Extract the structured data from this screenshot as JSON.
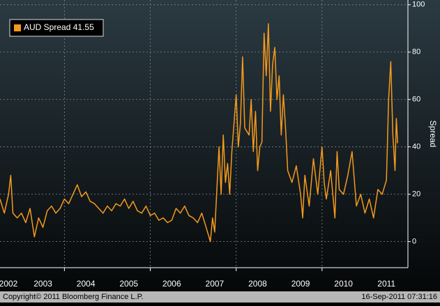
{
  "chart_data": {
    "type": "line",
    "legend_corner": "top-left",
    "y_label": "Spread",
    "footer_left": "Copyright© 2011 Bloomberg Finance L.P.",
    "footer_right": "16-Sep-2011 07:31:16",
    "xlim": [
      2002.5,
      2012.0
    ],
    "xticks": [
      {
        "value": 2002.5,
        "label": "2002"
      },
      {
        "value": 2003.5,
        "label": "2003"
      },
      {
        "value": 2004.5,
        "label": "2004"
      },
      {
        "value": 2005.5,
        "label": "2005"
      },
      {
        "value": 2006.5,
        "label": "2006"
      },
      {
        "value": 2007.5,
        "label": "2007"
      },
      {
        "value": 2008.5,
        "label": "2008"
      },
      {
        "value": 2009.5,
        "label": "2009"
      },
      {
        "value": 2010.5,
        "label": "2010"
      },
      {
        "value": 2011.5,
        "label": "2011"
      }
    ],
    "xgrid": [
      2004,
      2006,
      2008,
      2010
    ],
    "ylim": [
      -11,
      102
    ],
    "yticks": [
      0,
      20,
      40,
      60,
      80,
      100
    ],
    "grid": true,
    "x": [
      2002.5,
      2002.6,
      2002.7,
      2002.75,
      2002.8,
      2002.9,
      2003.0,
      2003.1,
      2003.2,
      2003.3,
      2003.4,
      2003.5,
      2003.6,
      2003.7,
      2003.8,
      2003.9,
      2004.0,
      2004.1,
      2004.2,
      2004.3,
      2004.4,
      2004.5,
      2004.6,
      2004.7,
      2004.8,
      2004.9,
      2005.0,
      2005.1,
      2005.2,
      2005.3,
      2005.4,
      2005.5,
      2005.6,
      2005.7,
      2005.8,
      2005.9,
      2006.0,
      2006.1,
      2006.2,
      2006.3,
      2006.4,
      2006.5,
      2006.6,
      2006.7,
      2006.8,
      2006.9,
      2007.0,
      2007.1,
      2007.2,
      2007.3,
      2007.4,
      2007.45,
      2007.5,
      2007.55,
      2007.6,
      2007.65,
      2007.7,
      2007.75,
      2007.8,
      2007.85,
      2007.9,
      2008.0,
      2008.05,
      2008.1,
      2008.15,
      2008.2,
      2008.3,
      2008.35,
      2008.4,
      2008.45,
      2008.5,
      2008.55,
      2008.6,
      2008.65,
      2008.7,
      2008.75,
      2008.8,
      2008.85,
      2008.9,
      2008.95,
      2009.0,
      2009.05,
      2009.1,
      2009.15,
      2009.2,
      2009.3,
      2009.4,
      2009.5,
      2009.55,
      2009.6,
      2009.7,
      2009.8,
      2009.9,
      2010.0,
      2010.05,
      2010.1,
      2010.2,
      2010.3,
      2010.35,
      2010.4,
      2010.5,
      2010.6,
      2010.7,
      2010.8,
      2010.9,
      2011.0,
      2011.1,
      2011.2,
      2011.3,
      2011.4,
      2011.5,
      2011.55,
      2011.6,
      2011.65,
      2011.7,
      2011.73,
      2011.76
    ],
    "series": [
      {
        "name": "AUD Spread",
        "color": "#f49a1c",
        "values": [
          18,
          12,
          20,
          28,
          12,
          10,
          12,
          8,
          14,
          2,
          10,
          6,
          13,
          15,
          12,
          14,
          18,
          16,
          20,
          24,
          19,
          21,
          17,
          16,
          14,
          12,
          15,
          13,
          16,
          15,
          18,
          14,
          17,
          13,
          12,
          15,
          11,
          12,
          9,
          10,
          8,
          9,
          14,
          12,
          15,
          11,
          10,
          8,
          12,
          6,
          0,
          10,
          4,
          22,
          40,
          20,
          45,
          25,
          33,
          20,
          38,
          62,
          40,
          50,
          78,
          48,
          45,
          60,
          38,
          55,
          30,
          40,
          42,
          88,
          70,
          92,
          55,
          75,
          82,
          60,
          70,
          45,
          62,
          48,
          30,
          25,
          32,
          20,
          10,
          28,
          15,
          35,
          20,
          40,
          25,
          18,
          30,
          10,
          38,
          22,
          20,
          28,
          38,
          15,
          20,
          12,
          18,
          10,
          22,
          20,
          26,
          60,
          76,
          45,
          30,
          52,
          41.55
        ]
      }
    ]
  }
}
